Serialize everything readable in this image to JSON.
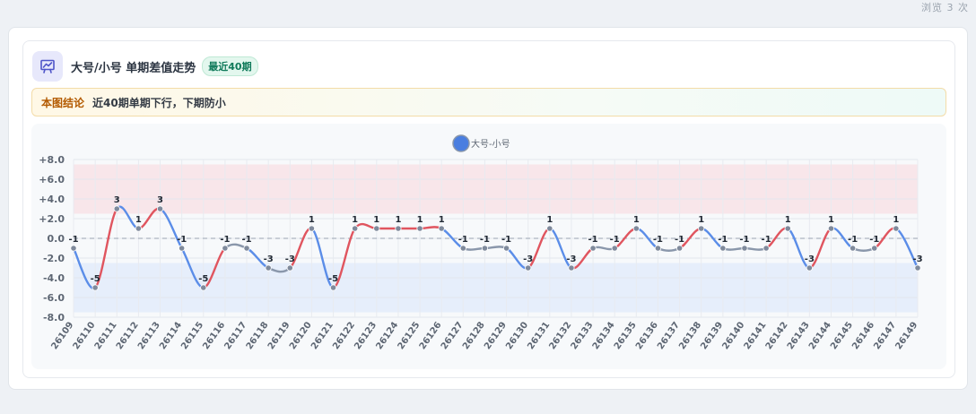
{
  "page": {
    "view_count": "浏览 3 次"
  },
  "card": {
    "title": "大号/小号 单期差值走势",
    "badge": "最近40期",
    "conclusion_label": "本图结论",
    "conclusion_text": "近40期单期下行，下期防小"
  },
  "icons": {
    "header_icon": "trend-chart-icon"
  },
  "colors": {
    "up": "#e0555f",
    "down": "#5b8de8",
    "neutral": "#8a97ab",
    "legend": "#4a7ee0",
    "upper_band": "#f8e6ea",
    "lower_band": "#e6eefb"
  },
  "chart_data": {
    "type": "line",
    "title": "",
    "xlabel": "",
    "ylabel": "",
    "legend": {
      "label": "大号-小号",
      "position": "top-center"
    },
    "ylim": [
      -8,
      8
    ],
    "yticks": [
      "+8.0",
      "+6.0",
      "+4.0",
      "+2.0",
      "0.0",
      "-2.0",
      "-4.0",
      "-6.0",
      "-8.0"
    ],
    "ytick_values": [
      8,
      6,
      4,
      2,
      0,
      -2,
      -4,
      -6,
      -8
    ],
    "bands": [
      {
        "name": "upper",
        "from": 2.5,
        "to": 7.5
      },
      {
        "name": "lower",
        "from": -7.5,
        "to": -2.5
      }
    ],
    "zero_line": true,
    "grid": true,
    "categories": [
      "26109",
      "26110",
      "26111",
      "26112",
      "26113",
      "26114",
      "26115",
      "26116",
      "26117",
      "26118",
      "26119",
      "26120",
      "26121",
      "26122",
      "26123",
      "26124",
      "26125",
      "26126",
      "26127",
      "26128",
      "26129",
      "26130",
      "26131",
      "26132",
      "26133",
      "26134",
      "26135",
      "26136",
      "26137",
      "26138",
      "26139",
      "26140",
      "26141",
      "26142",
      "26143",
      "26144",
      "26145",
      "26146",
      "26147",
      "26149"
    ],
    "series": [
      {
        "name": "大号-小号",
        "values": [
          -1,
          -5,
          3,
          1,
          3,
          -1,
          -5,
          -1,
          -1,
          -3,
          -3,
          1,
          -5,
          1,
          1,
          1,
          1,
          1,
          -1,
          -1,
          -1,
          -3,
          1,
          -3,
          -1,
          -1,
          1,
          -1,
          -1,
          1,
          -1,
          -1,
          -1,
          1,
          -3,
          1,
          -1,
          -1,
          1,
          -3
        ],
        "labels": [
          "-1",
          "-5",
          "3",
          "1",
          "3",
          "-1",
          "-5",
          "-1",
          "-1",
          "-3",
          "-3",
          "1",
          "-5",
          "1",
          "1",
          "1",
          "1",
          "1",
          "-1",
          "-1",
          "-1",
          "-3",
          "1",
          "-3",
          "-1",
          "-1",
          "1",
          "-1",
          "-1",
          "1",
          "-1",
          "-1",
          "-1",
          "1",
          "-3",
          "1",
          "-1",
          "-1",
          "1",
          "-3"
        ]
      }
    ]
  }
}
